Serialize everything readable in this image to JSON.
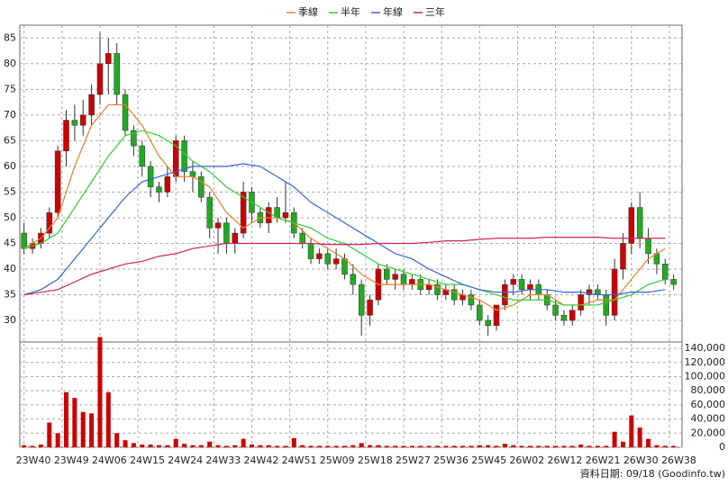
{
  "chart_data": {
    "type": "candlestick",
    "legend": "top",
    "grid": true,
    "up_color": "#cc0000",
    "down_color": "#22aa22",
    "xlim": [
      -1,
      156
    ],
    "xticks": [
      {
        "value": 0,
        "label": "23W40"
      },
      {
        "value": 9,
        "label": "23W49"
      },
      {
        "value": 18,
        "label": "24W06"
      },
      {
        "value": 27,
        "label": "24W15"
      },
      {
        "value": 36,
        "label": "24W24"
      },
      {
        "value": 45,
        "label": "24W33"
      },
      {
        "value": 54,
        "label": "24W42"
      },
      {
        "value": 63,
        "label": "24W51"
      },
      {
        "value": 72,
        "label": "25W09"
      },
      {
        "value": 81,
        "label": "25W18"
      },
      {
        "value": 90,
        "label": "25W27"
      },
      {
        "value": 99,
        "label": "25W36"
      },
      {
        "value": 108,
        "label": "25W45"
      },
      {
        "value": 117,
        "label": "26W02"
      },
      {
        "value": 126,
        "label": "26W12"
      },
      {
        "value": 135,
        "label": "26W21"
      },
      {
        "value": 144,
        "label": "26W30"
      },
      {
        "value": 153,
        "label": "26W38"
      }
    ],
    "ylim": [
      25.8,
      87.5
    ],
    "yticks": [
      30,
      35,
      40,
      45,
      50,
      55,
      60,
      65,
      70,
      75,
      80,
      85
    ],
    "candles": {
      "x": [
        0,
        2,
        4,
        6,
        8,
        10,
        12,
        14,
        16,
        18,
        20,
        22,
        24,
        26,
        28,
        30,
        32,
        34,
        36,
        38,
        40,
        42,
        44,
        46,
        48,
        50,
        52,
        54,
        56,
        58,
        60,
        62,
        64,
        66,
        68,
        70,
        72,
        74,
        76,
        78,
        80,
        82,
        84,
        86,
        88,
        90,
        92,
        94,
        96,
        98,
        100,
        102,
        104,
        106,
        108,
        110,
        112,
        114,
        116,
        118,
        120,
        122,
        124,
        126,
        128,
        130,
        132,
        134,
        136,
        138,
        140,
        142,
        144,
        146,
        148,
        150,
        152,
        154
      ],
      "open": [
        47,
        44,
        45,
        47,
        51,
        63,
        69,
        68,
        70,
        74,
        80,
        82,
        74,
        67,
        64,
        60,
        56,
        55,
        58,
        65,
        59,
        58,
        54,
        48,
        49,
        45,
        47,
        55,
        51,
        49,
        52,
        50,
        51,
        47,
        45,
        42,
        43,
        41,
        42,
        39,
        37,
        31,
        34,
        40,
        38,
        39,
        37,
        38,
        36,
        37,
        35,
        36,
        34,
        35,
        33,
        30,
        29,
        33,
        37,
        38,
        36,
        37,
        35,
        33,
        31,
        30,
        32,
        35,
        36,
        35,
        31,
        40,
        45,
        52,
        46,
        43,
        41,
        38
      ],
      "high": [
        49,
        46,
        48,
        52,
        64,
        71,
        72,
        73,
        76,
        86,
        85,
        84,
        75,
        68,
        65,
        61,
        57,
        60,
        66,
        66,
        61,
        59,
        55,
        50,
        50,
        48,
        57,
        56,
        52,
        53,
        54,
        57,
        52,
        48,
        46,
        44,
        44,
        44,
        43,
        41,
        38,
        35,
        41,
        41,
        40,
        40,
        39,
        39,
        38,
        38,
        37,
        37,
        36,
        36,
        34,
        31,
        33,
        38,
        39,
        39,
        38,
        38,
        36,
        34,
        32,
        33,
        36,
        37,
        37,
        36,
        42,
        47,
        53,
        55,
        48,
        44,
        42,
        39
      ],
      "low": [
        43,
        43,
        44,
        46,
        50,
        60,
        65,
        66,
        68,
        72,
        74,
        72,
        66,
        62,
        58,
        54,
        53,
        54,
        57,
        57,
        55,
        53,
        46,
        43,
        43,
        43,
        46,
        49,
        48,
        47,
        49,
        49,
        46,
        44,
        41,
        41,
        40,
        40,
        38,
        35,
        27,
        29,
        33,
        37,
        36,
        36,
        36,
        35,
        35,
        34,
        34,
        33,
        33,
        32,
        29,
        27,
        28,
        32,
        35,
        35,
        34,
        34,
        32,
        30,
        29,
        29,
        31,
        33,
        34,
        29,
        30,
        38,
        43,
        44,
        41,
        39,
        37,
        36
      ],
      "close": [
        44,
        45,
        47,
        51,
        63,
        69,
        68,
        70,
        74,
        80,
        82,
        74,
        67,
        64,
        60,
        56,
        55,
        58,
        65,
        59,
        58,
        54,
        48,
        49,
        45,
        47,
        55,
        51,
        49,
        52,
        50,
        51,
        47,
        45,
        42,
        43,
        41,
        42,
        39,
        37,
        31,
        34,
        40,
        38,
        39,
        37,
        38,
        36,
        37,
        35,
        36,
        34,
        35,
        33,
        30,
        29,
        33,
        37,
        38,
        36,
        37,
        35,
        33,
        31,
        30,
        32,
        35,
        36,
        35,
        31,
        40,
        45,
        52,
        46,
        43,
        41,
        38,
        37
      ]
    },
    "volume": {
      "color": "#cc0000",
      "values": [
        3000,
        2000,
        4000,
        35000,
        20000,
        78000,
        70000,
        50000,
        48000,
        156000,
        78000,
        20000,
        10000,
        6000,
        4000,
        4000,
        3000,
        3000,
        12000,
        5000,
        3000,
        3000,
        8000,
        3000,
        2000,
        3000,
        12000,
        4000,
        3000,
        3000,
        2000,
        2000,
        13000,
        3000,
        2000,
        2000,
        2000,
        2000,
        2000,
        3000,
        6000,
        3000,
        3000,
        2000,
        2000,
        2000,
        2000,
        2000,
        2000,
        2000,
        2000,
        2000,
        2000,
        2000,
        3000,
        3000,
        2000,
        5000,
        3000,
        2000,
        2000,
        2000,
        2000,
        2000,
        2000,
        2000,
        4000,
        2000,
        2000,
        2000,
        22000,
        8000,
        45000,
        28000,
        12000,
        3000,
        2000,
        2000
      ],
      "ylim": [
        0,
        149000
      ],
      "yticks": [
        0,
        {
          "value": 20000,
          "label": "20,000"
        },
        {
          "value": 40000,
          "label": "40,000"
        },
        {
          "value": 60000,
          "label": "60,000"
        },
        {
          "value": 80000,
          "label": "80,000"
        },
        {
          "value": 100000,
          "label": "100,000"
        },
        {
          "value": 120000,
          "label": "120,000"
        },
        {
          "value": 140000,
          "label": "140,000"
        }
      ]
    },
    "series": [
      {
        "name": "季線",
        "color": "#e8822a",
        "x": [
          0,
          4,
          8,
          12,
          16,
          20,
          24,
          28,
          32,
          36,
          40,
          44,
          48,
          52,
          56,
          60,
          64,
          68,
          72,
          76,
          80,
          84,
          88,
          92,
          96,
          100,
          104,
          108,
          112,
          116,
          120,
          124,
          128,
          132,
          136,
          140,
          144,
          148,
          152
        ],
        "values": [
          44,
          46,
          50,
          60,
          68,
          72,
          72,
          68,
          62,
          58,
          58,
          56,
          51,
          48,
          50,
          50,
          49,
          46,
          44,
          42,
          39,
          37,
          37,
          37,
          37,
          36,
          35,
          34,
          32,
          33,
          35,
          35,
          33,
          33,
          34,
          34,
          38,
          42,
          44
        ]
      },
      {
        "name": "半年",
        "color": "#33cc33",
        "x": [
          0,
          4,
          8,
          12,
          16,
          20,
          24,
          28,
          32,
          36,
          40,
          44,
          48,
          52,
          56,
          60,
          64,
          68,
          72,
          76,
          80,
          84,
          88,
          92,
          96,
          100,
          104,
          108,
          112,
          116,
          120,
          124,
          128,
          132,
          136,
          140,
          144,
          148,
          152
        ],
        "values": [
          44,
          45,
          47,
          52,
          57,
          62,
          66,
          67,
          66,
          64,
          61,
          59,
          56,
          54,
          52,
          50,
          49,
          48,
          46,
          45,
          43,
          41,
          40,
          39,
          38,
          37,
          37,
          36,
          35,
          34,
          34,
          34,
          33,
          33,
          33,
          34,
          35,
          37,
          38
        ]
      },
      {
        "name": "年線",
        "color": "#3366dd",
        "x": [
          0,
          4,
          8,
          12,
          16,
          20,
          24,
          28,
          32,
          36,
          40,
          44,
          48,
          52,
          56,
          60,
          64,
          68,
          72,
          76,
          80,
          84,
          88,
          92,
          96,
          100,
          104,
          108,
          112,
          116,
          120,
          124,
          128,
          132,
          136,
          140,
          144,
          148,
          152
        ],
        "values": [
          35,
          36,
          38,
          42,
          46,
          50,
          54,
          57,
          58,
          59,
          60,
          60,
          60,
          60.5,
          60,
          58,
          56,
          53,
          51,
          49,
          47,
          45,
          43,
          42,
          40,
          38.5,
          37,
          36,
          35.5,
          35.5,
          36,
          36,
          35.5,
          35.5,
          35,
          35,
          35.5,
          35.5,
          36
        ]
      },
      {
        "name": "三年",
        "color": "#cc2266",
        "x": [
          0,
          4,
          8,
          12,
          16,
          20,
          24,
          28,
          32,
          36,
          40,
          44,
          48,
          52,
          56,
          60,
          64,
          68,
          72,
          76,
          80,
          84,
          88,
          92,
          96,
          100,
          104,
          108,
          112,
          116,
          120,
          124,
          128,
          132,
          136,
          140,
          144,
          148,
          152
        ],
        "values": [
          35,
          35.5,
          36,
          37.5,
          39,
          40,
          41,
          41.5,
          42.5,
          43,
          44,
          44.5,
          45,
          45,
          45,
          45,
          45,
          45,
          44.8,
          44.8,
          44.8,
          45,
          45,
          45,
          45.2,
          45.5,
          45.5,
          45.8,
          46,
          46,
          46,
          46.2,
          46.2,
          46.2,
          46.2,
          46,
          46,
          46,
          46
        ]
      }
    ],
    "footer": "資料日期: 09/18 (Goodinfo.tw)"
  }
}
